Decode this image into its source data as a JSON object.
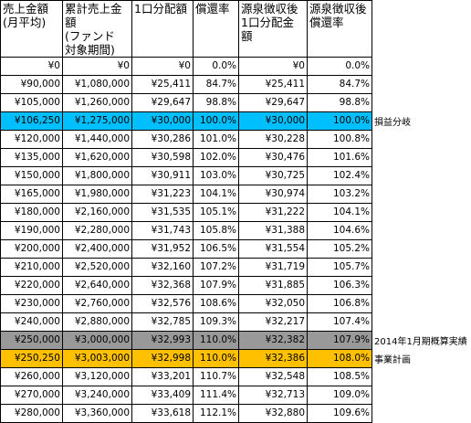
{
  "table": {
    "columns": [
      "売上金額\n(月平均)",
      "累計売上金額\n(ファンド\n対象期間)",
      "1口分配額",
      "償還率",
      "源泉徴収後\n1口分配金額",
      "源泉徴収後\n償還率"
    ],
    "rows": [
      {
        "cells": [
          "¥0",
          "¥0",
          "¥0",
          "0.0%",
          "¥0",
          "0.0%"
        ],
        "highlight": ""
      },
      {
        "cells": [
          "¥90,000",
          "¥1,080,000",
          "¥25,411",
          "84.7%",
          "¥25,411",
          "84.7%"
        ],
        "highlight": ""
      },
      {
        "cells": [
          "¥105,000",
          "¥1,260,000",
          "¥29,647",
          "98.8%",
          "¥29,647",
          "98.8%"
        ],
        "highlight": ""
      },
      {
        "cells": [
          "¥106,250",
          "¥1,275,000",
          "¥30,000",
          "100.0%",
          "¥30,000",
          "100.0%"
        ],
        "highlight": "cyan"
      },
      {
        "cells": [
          "¥120,000",
          "¥1,440,000",
          "¥30,286",
          "101.0%",
          "¥30,228",
          "100.8%"
        ],
        "highlight": ""
      },
      {
        "cells": [
          "¥135,000",
          "¥1,620,000",
          "¥30,598",
          "102.0%",
          "¥30,476",
          "101.6%"
        ],
        "highlight": ""
      },
      {
        "cells": [
          "¥150,000",
          "¥1,800,000",
          "¥30,911",
          "103.0%",
          "¥30,725",
          "102.4%"
        ],
        "highlight": ""
      },
      {
        "cells": [
          "¥165,000",
          "¥1,980,000",
          "¥31,223",
          "104.1%",
          "¥30,974",
          "103.2%"
        ],
        "highlight": ""
      },
      {
        "cells": [
          "¥180,000",
          "¥2,160,000",
          "¥31,535",
          "105.1%",
          "¥31,222",
          "104.1%"
        ],
        "highlight": ""
      },
      {
        "cells": [
          "¥190,000",
          "¥2,280,000",
          "¥31,743",
          "105.8%",
          "¥31,388",
          "104.6%"
        ],
        "highlight": ""
      },
      {
        "cells": [
          "¥200,000",
          "¥2,400,000",
          "¥31,952",
          "106.5%",
          "¥31,554",
          "105.2%"
        ],
        "highlight": ""
      },
      {
        "cells": [
          "¥210,000",
          "¥2,520,000",
          "¥32,160",
          "107.2%",
          "¥31,719",
          "105.7%"
        ],
        "highlight": ""
      },
      {
        "cells": [
          "¥220,000",
          "¥2,640,000",
          "¥32,368",
          "107.9%",
          "¥31,885",
          "106.3%"
        ],
        "highlight": ""
      },
      {
        "cells": [
          "¥230,000",
          "¥2,760,000",
          "¥32,576",
          "108.6%",
          "¥32,050",
          "106.8%"
        ],
        "highlight": ""
      },
      {
        "cells": [
          "¥240,000",
          "¥2,880,000",
          "¥32,785",
          "109.3%",
          "¥32,217",
          "107.4%"
        ],
        "highlight": ""
      },
      {
        "cells": [
          "¥250,000",
          "¥3,000,000",
          "¥32,993",
          "110.0%",
          "¥32,382",
          "107.9%"
        ],
        "highlight": "gray"
      },
      {
        "cells": [
          "¥250,250",
          "¥3,003,000",
          "¥32,998",
          "110.0%",
          "¥32,386",
          "108.0%"
        ],
        "highlight": "orange"
      },
      {
        "cells": [
          "¥260,000",
          "¥3,120,000",
          "¥33,201",
          "110.7%",
          "¥32,548",
          "108.5%"
        ],
        "highlight": ""
      },
      {
        "cells": [
          "¥270,000",
          "¥3,240,000",
          "¥33,409",
          "111.4%",
          "¥32,713",
          "109.0%"
        ],
        "highlight": ""
      },
      {
        "cells": [
          "¥280,000",
          "¥3,360,000",
          "¥33,618",
          "112.1%",
          "¥32,880",
          "109.6%"
        ],
        "highlight": ""
      }
    ]
  },
  "annotations": [
    {
      "row": 3,
      "text": "損益分岐"
    },
    {
      "row": 15,
      "text": "2014年1月期概算実績"
    },
    {
      "row": 16,
      "text": "事業計画"
    }
  ]
}
